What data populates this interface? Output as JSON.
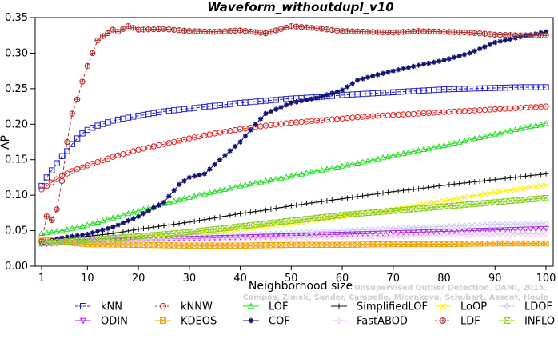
{
  "chart_data": {
    "type": "line",
    "title": "Waveform_withoutdupl_v10",
    "xlabel": "Neighborhood size",
    "ylabel": "AP",
    "xlim": [
      1,
      100
    ],
    "ylim": [
      0,
      0.35
    ],
    "x_ticks": [
      1,
      10,
      20,
      30,
      40,
      50,
      60,
      70,
      80,
      90,
      100
    ],
    "y_ticks": [
      0.0,
      0.05,
      0.1,
      0.15,
      0.2,
      0.25,
      0.3,
      0.35
    ],
    "x_tick_labels": [
      "1",
      "10",
      "20",
      "30",
      "40",
      "50",
      "60",
      "70",
      "80",
      "90",
      "100"
    ],
    "y_tick_labels": [
      "0.00",
      "0.05",
      "0.10",
      "0.15",
      "0.20",
      "0.25",
      "0.30",
      "0.35"
    ],
    "credit": "Campos, Zimek, Sander, Campello, Micenkova, Schubert, Assent, Houle",
    "credit_top": "Unsupervised Outlier Detection. DAMI, 2015.",
    "grid": false,
    "legend_position": "bottom",
    "series": [
      {
        "name": "kNN",
        "color": "#1f1fcc",
        "marker": "square",
        "dashed": true,
        "points": [
          [
            1,
            0.113
          ],
          [
            2,
            0.125
          ],
          [
            3,
            0.135
          ],
          [
            4,
            0.145
          ],
          [
            5,
            0.155
          ],
          [
            6,
            0.162
          ],
          [
            7,
            0.172
          ],
          [
            8,
            0.18
          ],
          [
            9,
            0.187
          ],
          [
            10,
            0.192
          ],
          [
            12,
            0.198
          ],
          [
            15,
            0.205
          ],
          [
            20,
            0.212
          ],
          [
            25,
            0.218
          ],
          [
            30,
            0.222
          ],
          [
            35,
            0.226
          ],
          [
            40,
            0.23
          ],
          [
            45,
            0.233
          ],
          [
            50,
            0.236
          ],
          [
            55,
            0.238
          ],
          [
            60,
            0.241
          ],
          [
            65,
            0.243
          ],
          [
            70,
            0.245
          ],
          [
            75,
            0.247
          ],
          [
            80,
            0.249
          ],
          [
            85,
            0.25
          ],
          [
            90,
            0.251
          ],
          [
            95,
            0.252
          ],
          [
            100,
            0.252
          ]
        ]
      },
      {
        "name": "kNNW",
        "color": "#e02020",
        "marker": "circle",
        "dashed": true,
        "points": [
          [
            1,
            0.108
          ],
          [
            3,
            0.118
          ],
          [
            5,
            0.127
          ],
          [
            7,
            0.134
          ],
          [
            10,
            0.142
          ],
          [
            15,
            0.154
          ],
          [
            20,
            0.164
          ],
          [
            25,
            0.172
          ],
          [
            30,
            0.18
          ],
          [
            35,
            0.187
          ],
          [
            40,
            0.193
          ],
          [
            45,
            0.198
          ],
          [
            50,
            0.202
          ],
          [
            55,
            0.205
          ],
          [
            60,
            0.208
          ],
          [
            65,
            0.211
          ],
          [
            70,
            0.213
          ],
          [
            75,
            0.215
          ],
          [
            80,
            0.217
          ],
          [
            85,
            0.219
          ],
          [
            90,
            0.221
          ],
          [
            95,
            0.223
          ],
          [
            100,
            0.225
          ]
        ]
      },
      {
        "name": "LOF",
        "color": "#22dd22",
        "marker": "triangle",
        "dashed": false,
        "points": [
          [
            1,
            0.046
          ],
          [
            5,
            0.05
          ],
          [
            10,
            0.058
          ],
          [
            15,
            0.068
          ],
          [
            20,
            0.078
          ],
          [
            25,
            0.088
          ],
          [
            30,
            0.097
          ],
          [
            35,
            0.105
          ],
          [
            40,
            0.113
          ],
          [
            45,
            0.12
          ],
          [
            50,
            0.127
          ],
          [
            55,
            0.134
          ],
          [
            60,
            0.141
          ],
          [
            65,
            0.148
          ],
          [
            70,
            0.156
          ],
          [
            75,
            0.163
          ],
          [
            80,
            0.17
          ],
          [
            85,
            0.178
          ],
          [
            90,
            0.186
          ],
          [
            95,
            0.194
          ],
          [
            100,
            0.201
          ]
        ]
      },
      {
        "name": "SimplifiedLOF",
        "color": "#111111",
        "marker": "plus",
        "dashed": false,
        "points": [
          [
            1,
            0.033
          ],
          [
            5,
            0.037
          ],
          [
            10,
            0.042
          ],
          [
            15,
            0.046
          ],
          [
            20,
            0.052
          ],
          [
            25,
            0.057
          ],
          [
            30,
            0.062
          ],
          [
            35,
            0.068
          ],
          [
            40,
            0.074
          ],
          [
            45,
            0.079
          ],
          [
            50,
            0.085
          ],
          [
            55,
            0.09
          ],
          [
            60,
            0.095
          ],
          [
            65,
            0.1
          ],
          [
            70,
            0.105
          ],
          [
            75,
            0.109
          ],
          [
            80,
            0.114
          ],
          [
            85,
            0.118
          ],
          [
            90,
            0.122
          ],
          [
            95,
            0.126
          ],
          [
            100,
            0.13
          ]
        ]
      },
      {
        "name": "LoOP",
        "color": "#ffee00",
        "marker": "x",
        "dashed": false,
        "points": [
          [
            1,
            0.033
          ],
          [
            10,
            0.036
          ],
          [
            20,
            0.04
          ],
          [
            30,
            0.045
          ],
          [
            40,
            0.052
          ],
          [
            50,
            0.06
          ],
          [
            60,
            0.07
          ],
          [
            70,
            0.08
          ],
          [
            80,
            0.092
          ],
          [
            90,
            0.104
          ],
          [
            100,
            0.114
          ]
        ]
      },
      {
        "name": "LDOF",
        "color": "#c8c8f8",
        "marker": "diamond",
        "dashed": false,
        "points": [
          [
            1,
            0.036
          ],
          [
            10,
            0.038
          ],
          [
            20,
            0.04
          ],
          [
            30,
            0.042
          ],
          [
            40,
            0.044
          ],
          [
            50,
            0.047
          ],
          [
            60,
            0.05
          ],
          [
            70,
            0.053
          ],
          [
            80,
            0.056
          ],
          [
            90,
            0.059
          ],
          [
            100,
            0.06
          ]
        ]
      },
      {
        "name": "ODIN",
        "color": "#aa22dd",
        "marker": "triangle-down",
        "dashed": false,
        "points": [
          [
            1,
            0.031
          ],
          [
            10,
            0.035
          ],
          [
            20,
            0.037
          ],
          [
            30,
            0.039
          ],
          [
            40,
            0.041
          ],
          [
            50,
            0.043
          ],
          [
            60,
            0.045
          ],
          [
            70,
            0.047
          ],
          [
            80,
            0.049
          ],
          [
            90,
            0.051
          ],
          [
            100,
            0.053
          ]
        ]
      },
      {
        "name": "KDEOS",
        "color": "#f0a000",
        "marker": "square-x",
        "dashed": false,
        "points": [
          [
            1,
            0.037
          ],
          [
            5,
            0.034
          ],
          [
            10,
            0.031
          ],
          [
            20,
            0.03
          ],
          [
            30,
            0.029
          ],
          [
            40,
            0.029
          ],
          [
            50,
            0.03
          ],
          [
            60,
            0.03
          ],
          [
            70,
            0.031
          ],
          [
            80,
            0.031
          ],
          [
            90,
            0.032
          ],
          [
            100,
            0.032
          ]
        ]
      },
      {
        "name": "COF",
        "color": "#12126e",
        "marker": "star",
        "dashed": false,
        "points": [
          [
            1,
            0.033
          ],
          [
            5,
            0.04
          ],
          [
            10,
            0.045
          ],
          [
            15,
            0.055
          ],
          [
            20,
            0.07
          ],
          [
            25,
            0.09
          ],
          [
            28,
            0.115
          ],
          [
            30,
            0.125
          ],
          [
            33,
            0.13
          ],
          [
            36,
            0.15
          ],
          [
            40,
            0.175
          ],
          [
            43,
            0.2
          ],
          [
            45,
            0.215
          ],
          [
            50,
            0.23
          ],
          [
            55,
            0.237
          ],
          [
            60,
            0.248
          ],
          [
            63,
            0.262
          ],
          [
            66,
            0.268
          ],
          [
            70,
            0.275
          ],
          [
            75,
            0.283
          ],
          [
            80,
            0.29
          ],
          [
            85,
            0.3
          ],
          [
            90,
            0.315
          ],
          [
            95,
            0.323
          ],
          [
            100,
            0.33
          ]
        ]
      },
      {
        "name": "FastABOD",
        "color": "#f0c8f0",
        "marker": "diamond",
        "dashed": false,
        "points": [
          [
            1,
            0.034
          ],
          [
            10,
            0.036
          ],
          [
            20,
            0.037
          ],
          [
            30,
            0.038
          ],
          [
            40,
            0.039
          ],
          [
            50,
            0.04
          ],
          [
            60,
            0.041
          ],
          [
            70,
            0.042
          ],
          [
            80,
            0.044
          ],
          [
            90,
            0.045
          ],
          [
            100,
            0.046
          ]
        ]
      },
      {
        "name": "LDF",
        "color": "#b03030",
        "marker": "circle-plus",
        "dashed": true,
        "points": [
          [
            1,
            0.035
          ],
          [
            2,
            0.07
          ],
          [
            3,
            0.065
          ],
          [
            4,
            0.08
          ],
          [
            5,
            0.12
          ],
          [
            6,
            0.175
          ],
          [
            7,
            0.215
          ],
          [
            8,
            0.235
          ],
          [
            9,
            0.26
          ],
          [
            10,
            0.282
          ],
          [
            11,
            0.3
          ],
          [
            12,
            0.318
          ],
          [
            13,
            0.324
          ],
          [
            14,
            0.328
          ],
          [
            15,
            0.333
          ],
          [
            16,
            0.33
          ],
          [
            18,
            0.338
          ],
          [
            20,
            0.333
          ],
          [
            25,
            0.334
          ],
          [
            30,
            0.331
          ],
          [
            35,
            0.33
          ],
          [
            40,
            0.332
          ],
          [
            45,
            0.328
          ],
          [
            50,
            0.338
          ],
          [
            55,
            0.335
          ],
          [
            60,
            0.331
          ],
          [
            65,
            0.33
          ],
          [
            70,
            0.329
          ],
          [
            75,
            0.331
          ],
          [
            80,
            0.33
          ],
          [
            85,
            0.329
          ],
          [
            90,
            0.326
          ],
          [
            95,
            0.325
          ],
          [
            100,
            0.325
          ]
        ]
      },
      {
        "name": "INFLO",
        "color": "#88cc22",
        "marker": "hourglass",
        "dashed": false,
        "points": [
          [
            1,
            0.032
          ],
          [
            10,
            0.037
          ],
          [
            20,
            0.042
          ],
          [
            30,
            0.048
          ],
          [
            40,
            0.056
          ],
          [
            50,
            0.064
          ],
          [
            60,
            0.072
          ],
          [
            70,
            0.078
          ],
          [
            80,
            0.084
          ],
          [
            90,
            0.09
          ],
          [
            100,
            0.096
          ]
        ]
      }
    ],
    "legend": [
      [
        "kNN",
        "kNNW",
        "LOF",
        "SimplifiedLOF",
        "LoOP",
        "LDOF"
      ],
      [
        "ODIN",
        "KDEOS",
        "COF",
        "FastABOD",
        "LDF",
        "INFLO"
      ]
    ]
  }
}
